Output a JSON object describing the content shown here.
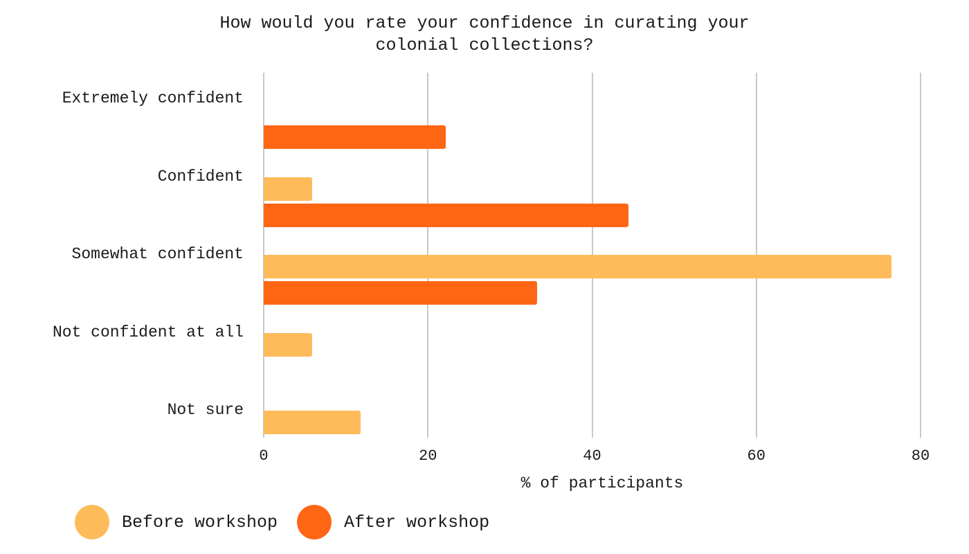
{
  "chart_data": {
    "type": "bar",
    "orientation": "horizontal",
    "title": "How would you rate your confidence in curating your colonial collections?",
    "title_lines": [
      "How would you rate your confidence in curating your",
      "colonial collections?"
    ],
    "xlabel": "% of participants",
    "ylabel": "",
    "xlim": [
      0,
      80
    ],
    "xticks": [
      "0",
      "20",
      "40",
      "60",
      "80"
    ],
    "grid": true,
    "legend_position": "bottom-left",
    "categories": [
      "Extremely confident",
      "Confident",
      "Somewhat confident",
      "Not confident at all",
      "Not sure"
    ],
    "series": [
      {
        "name": "Before workshop",
        "color": "#FDBB5A",
        "values": [
          0,
          5.9,
          76.5,
          5.9,
          11.8
        ]
      },
      {
        "name": "After workshop",
        "color": "#FF6614",
        "values": [
          22.2,
          44.4,
          33.3,
          0,
          0
        ]
      }
    ]
  }
}
